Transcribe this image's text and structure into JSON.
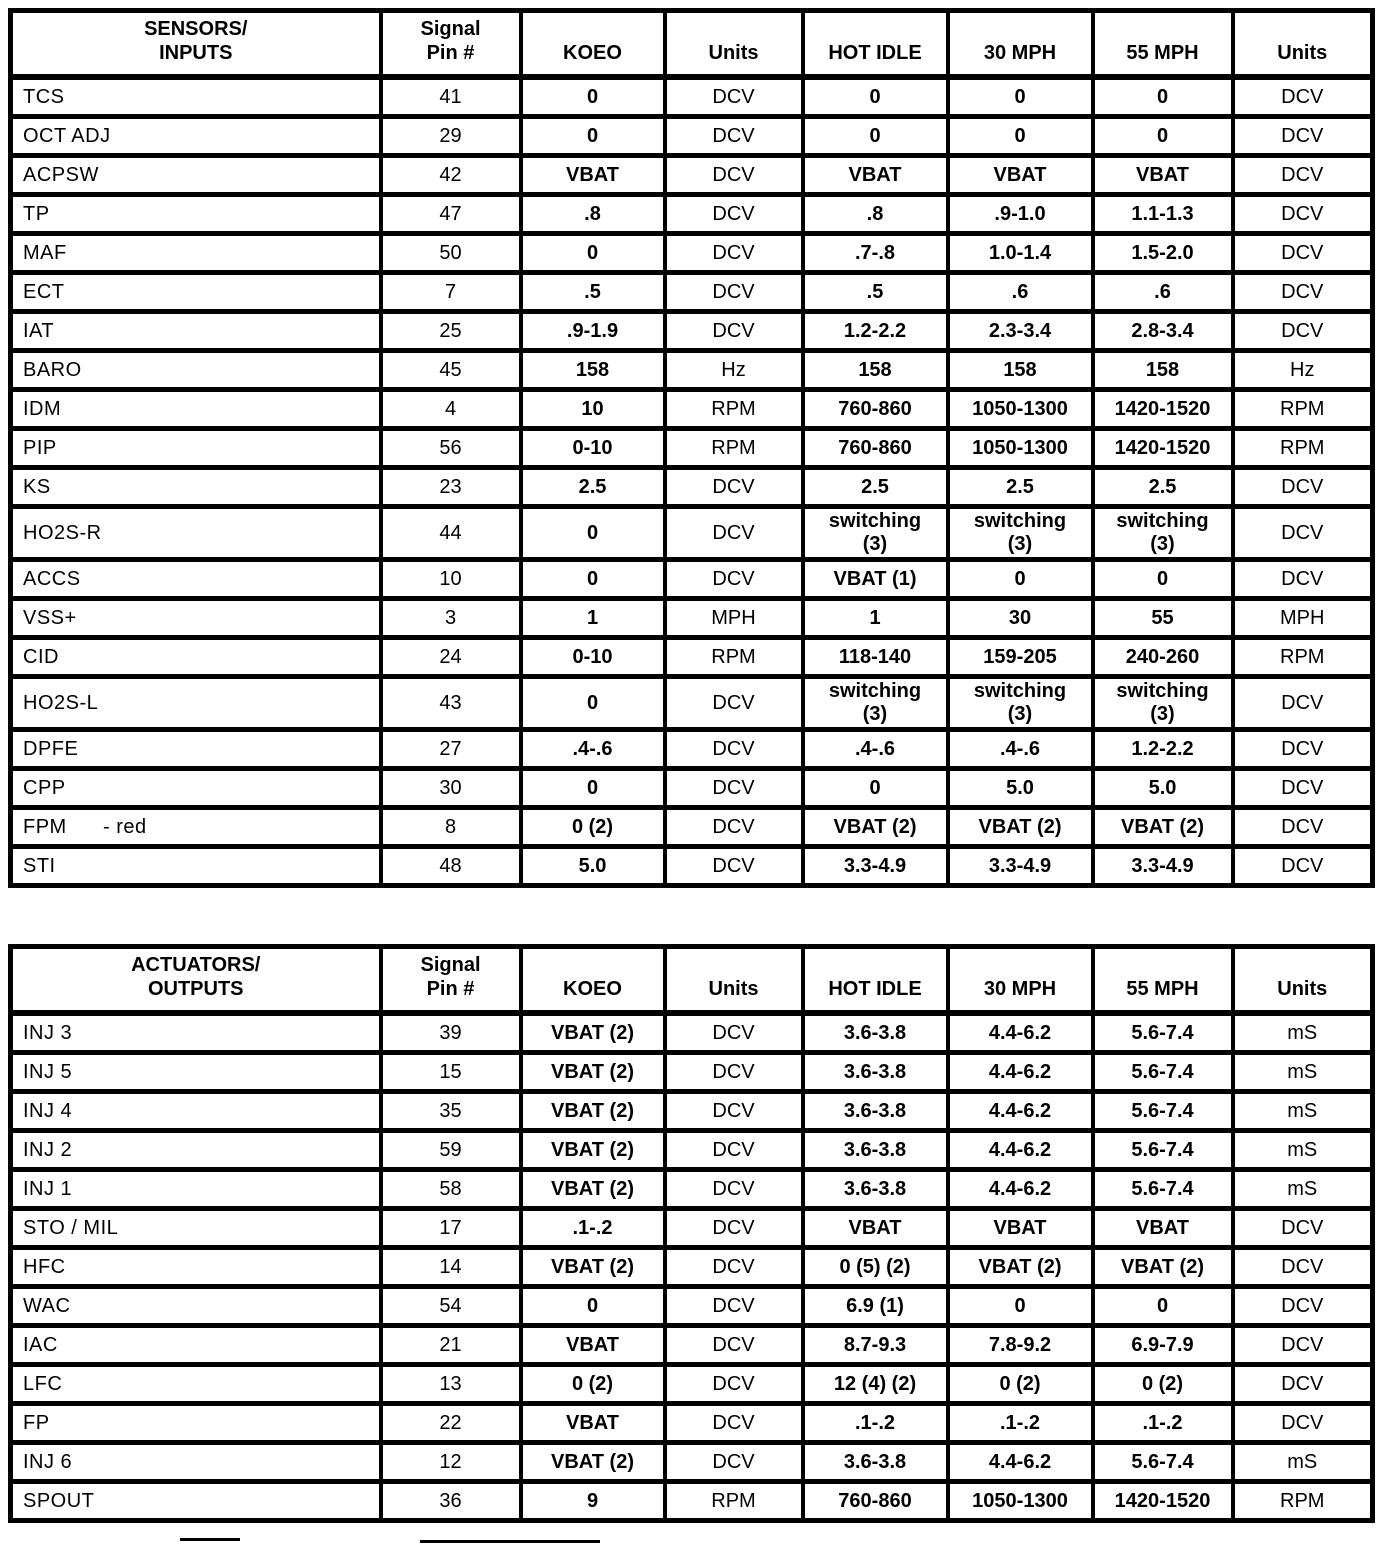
{
  "page": {
    "background_color": "#ffffff",
    "text_color": "#000000",
    "border_color": "#000000"
  },
  "tables": [
    {
      "name": "sensors-inputs",
      "headers": [
        "SENSORS/\nINPUTS",
        "Signal\nPin #",
        "KOEO",
        "Units",
        "HOT IDLE",
        "30 MPH",
        "55 MPH",
        "Units"
      ],
      "rows": [
        [
          "TCS",
          "41",
          "0",
          "DCV",
          "0",
          "0",
          "0",
          "DCV"
        ],
        [
          "OCT ADJ",
          "29",
          "0",
          "DCV",
          "0",
          "0",
          "0",
          "DCV"
        ],
        [
          "ACPSW",
          "42",
          "VBAT",
          "DCV",
          "VBAT",
          "VBAT",
          "VBAT",
          "DCV"
        ],
        [
          "TP",
          "47",
          ".8",
          "DCV",
          ".8",
          ".9-1.0",
          "1.1-1.3",
          "DCV"
        ],
        [
          "MAF",
          "50",
          "0",
          "DCV",
          ".7-.8",
          "1.0-1.4",
          "1.5-2.0",
          "DCV"
        ],
        [
          "ECT",
          "7",
          ".5",
          "DCV",
          ".5",
          ".6",
          ".6",
          "DCV"
        ],
        [
          "IAT",
          "25",
          ".9-1.9",
          "DCV",
          "1.2-2.2",
          "2.3-3.4",
          "2.8-3.4",
          "DCV"
        ],
        [
          "BARO",
          "45",
          "158",
          "Hz",
          "158",
          "158",
          "158",
          "Hz"
        ],
        [
          "IDM",
          "4",
          "10",
          "RPM",
          "760-860",
          "1050-1300",
          "1420-1520",
          "RPM"
        ],
        [
          "PIP",
          "56",
          "0-10",
          "RPM",
          "760-860",
          "1050-1300",
          "1420-1520",
          "RPM"
        ],
        [
          "KS",
          "23",
          "2.5",
          "DCV",
          "2.5",
          "2.5",
          "2.5",
          "DCV"
        ],
        [
          "HO2S-R",
          "44",
          "0",
          "DCV",
          "switching\n(3)",
          "switching\n(3)",
          "switching\n(3)",
          "DCV"
        ],
        [
          "ACCS",
          "10",
          "0",
          "DCV",
          "VBAT (1)",
          "0",
          "0",
          "DCV"
        ],
        [
          "VSS+",
          "3",
          "1",
          "MPH",
          "1",
          "30",
          "55",
          "MPH"
        ],
        [
          "CID",
          "24",
          "0-10",
          "RPM",
          "118-140",
          "159-205",
          "240-260",
          "RPM"
        ],
        [
          "HO2S-L",
          "43",
          "0",
          "DCV",
          "switching\n(3)",
          "switching\n(3)",
          "switching\n(3)",
          "DCV"
        ],
        [
          "DPFE",
          "27",
          ".4-.6",
          "DCV",
          ".4-.6",
          ".4-.6",
          "1.2-2.2",
          "DCV"
        ],
        [
          "CPP",
          "30",
          "0",
          "DCV",
          "0",
          "5.0",
          "5.0",
          "DCV"
        ],
        [
          "FPM      - red",
          "8",
          "0 (2)",
          "DCV",
          "VBAT (2)",
          "VBAT (2)",
          "VBAT (2)",
          "DCV"
        ],
        [
          "STI",
          "48",
          "5.0",
          "DCV",
          "3.3-4.9",
          "3.3-4.9",
          "3.3-4.9",
          "DCV"
        ]
      ]
    },
    {
      "name": "actuators-outputs",
      "headers": [
        "ACTUATORS/\nOUTPUTS",
        "Signal\nPin #",
        "KOEO",
        "Units",
        "HOT IDLE",
        "30 MPH",
        "55 MPH",
        "Units"
      ],
      "rows": [
        [
          "INJ 3",
          "39",
          "VBAT (2)",
          "DCV",
          "3.6-3.8",
          "4.4-6.2",
          "5.6-7.4",
          "mS"
        ],
        [
          "INJ 5",
          "15",
          "VBAT (2)",
          "DCV",
          "3.6-3.8",
          "4.4-6.2",
          "5.6-7.4",
          "mS"
        ],
        [
          "INJ 4",
          "35",
          "VBAT (2)",
          "DCV",
          "3.6-3.8",
          "4.4-6.2",
          "5.6-7.4",
          "mS"
        ],
        [
          "INJ 2",
          "59",
          "VBAT (2)",
          "DCV",
          "3.6-3.8",
          "4.4-6.2",
          "5.6-7.4",
          "mS"
        ],
        [
          "INJ 1",
          "58",
          "VBAT (2)",
          "DCV",
          "3.6-3.8",
          "4.4-6.2",
          "5.6-7.4",
          "mS"
        ],
        [
          "STO / MIL",
          "17",
          ".1-.2",
          "DCV",
          "VBAT",
          "VBAT",
          "VBAT",
          "DCV"
        ],
        [
          "HFC",
          "14",
          "VBAT (2)",
          "DCV",
          "0 (5) (2)",
          "VBAT (2)",
          "VBAT (2)",
          "DCV"
        ],
        [
          "WAC",
          "54",
          "0",
          "DCV",
          "6.9 (1)",
          "0",
          "0",
          "DCV"
        ],
        [
          "IAC",
          "21",
          "VBAT",
          "DCV",
          "8.7-9.3",
          "7.8-9.2",
          "6.9-7.9",
          "DCV"
        ],
        [
          "LFC",
          "13",
          "0 (2)",
          "DCV",
          "12 (4) (2)",
          "0 (2)",
          "0 (2)",
          "DCV"
        ],
        [
          "FP",
          "22",
          "VBAT",
          "DCV",
          ".1-.2",
          ".1-.2",
          ".1-.2",
          "DCV"
        ],
        [
          "INJ 6",
          "12",
          "VBAT (2)",
          "DCV",
          "3.6-3.8",
          "4.4-6.2",
          "5.6-7.4",
          "mS"
        ],
        [
          "SPOUT",
          "36",
          "9",
          "RPM",
          "760-860",
          "1050-1300",
          "1420-1520",
          "RPM"
        ]
      ]
    }
  ]
}
